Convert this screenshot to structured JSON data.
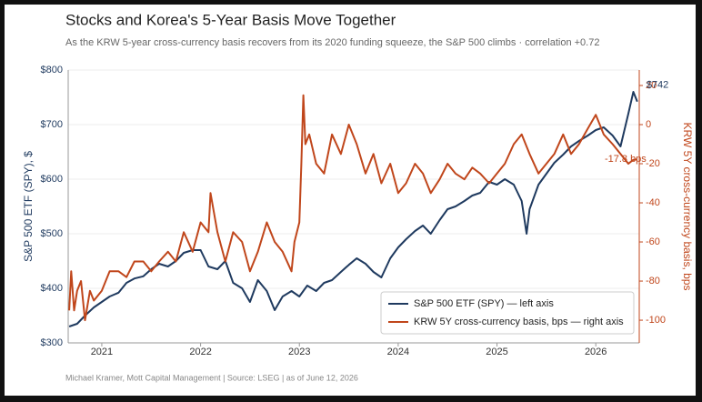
{
  "chart_data": {
    "type": "line",
    "title": "Stocks and Korea's 5-Year Basis Move Together",
    "subtitle": "As the KRW 5-year cross-currency basis recovers from its 2020 funding squeeze, the S&P 500 climbs  ·  correlation +0.72",
    "footer": "Michael Kramer, Mott Capital Management   |   Source: LSEG   |   as of June 12, 2026",
    "ylabel": "S&P 500 ETF (SPY), $",
    "y2label": "KRW 5Y cross-currency basis, bps",
    "xlim": [
      2020.66,
      2026.44
    ],
    "xticks": [
      2021,
      2022,
      2023,
      2024,
      2025,
      2026
    ],
    "ylim": [
      300,
      800
    ],
    "yticks": [
      {
        "value": 300,
        "label": "$300"
      },
      {
        "value": 400,
        "label": "$400"
      },
      {
        "value": 500,
        "label": "$500"
      },
      {
        "value": 600,
        "label": "$600"
      },
      {
        "value": 700,
        "label": "$700"
      },
      {
        "value": 800,
        "label": "$800"
      }
    ],
    "y2lim": [
      -111.6,
      27.9
    ],
    "y2ticks": [
      -100,
      -80,
      -60,
      -40,
      -20,
      0,
      20
    ],
    "legend": "lower right",
    "series": [
      {
        "name": "S&P 500 ETF (SPY)  —  left axis",
        "color": "#1f3a5f",
        "axis": "y",
        "end_label": "$742",
        "x": [
          2020.67,
          2020.75,
          2020.83,
          2020.92,
          2021.0,
          2021.08,
          2021.17,
          2021.25,
          2021.33,
          2021.42,
          2021.5,
          2021.58,
          2021.67,
          2021.75,
          2021.83,
          2021.92,
          2022.0,
          2022.08,
          2022.17,
          2022.25,
          2022.33,
          2022.42,
          2022.5,
          2022.58,
          2022.67,
          2022.75,
          2022.83,
          2022.92,
          2023.0,
          2023.08,
          2023.17,
          2023.25,
          2023.33,
          2023.42,
          2023.5,
          2023.58,
          2023.67,
          2023.75,
          2023.83,
          2023.92,
          2024.0,
          2024.08,
          2024.17,
          2024.25,
          2024.33,
          2024.42,
          2024.5,
          2024.58,
          2024.67,
          2024.75,
          2024.83,
          2024.92,
          2025.0,
          2025.08,
          2025.17,
          2025.25,
          2025.3,
          2025.33,
          2025.42,
          2025.5,
          2025.58,
          2025.67,
          2025.75,
          2025.83,
          2025.92,
          2026.0,
          2026.08,
          2026.17,
          2026.25,
          2026.33,
          2026.38,
          2026.42
        ],
        "values": [
          330,
          335,
          350,
          365,
          375,
          385,
          392,
          410,
          418,
          422,
          435,
          445,
          440,
          450,
          465,
          470,
          470,
          440,
          435,
          450,
          410,
          400,
          375,
          415,
          395,
          360,
          385,
          395,
          385,
          405,
          395,
          410,
          415,
          430,
          443,
          455,
          445,
          430,
          420,
          455,
          475,
          490,
          505,
          515,
          500,
          525,
          545,
          550,
          560,
          570,
          575,
          595,
          590,
          600,
          590,
          560,
          500,
          545,
          590,
          610,
          630,
          645,
          660,
          670,
          680,
          690,
          695,
          680,
          660,
          720,
          760,
          742
        ]
      },
      {
        "name": "KRW 5Y cross-currency basis, bps  —  right axis",
        "color": "#c0461b",
        "axis": "y2",
        "end_label": "-17.8 bps",
        "x": [
          2020.67,
          2020.69,
          2020.72,
          2020.75,
          2020.79,
          2020.83,
          2020.88,
          2020.92,
          2021.0,
          2021.08,
          2021.17,
          2021.25,
          2021.33,
          2021.42,
          2021.5,
          2021.58,
          2021.67,
          2021.75,
          2021.83,
          2021.92,
          2022.0,
          2022.08,
          2022.1,
          2022.17,
          2022.25,
          2022.33,
          2022.42,
          2022.5,
          2022.58,
          2022.67,
          2022.75,
          2022.83,
          2022.92,
          2022.95,
          2023.0,
          2023.02,
          2023.04,
          2023.06,
          2023.1,
          2023.17,
          2023.25,
          2023.33,
          2023.42,
          2023.5,
          2023.58,
          2023.67,
          2023.75,
          2023.83,
          2023.92,
          2024.0,
          2024.08,
          2024.17,
          2024.25,
          2024.33,
          2024.42,
          2024.5,
          2024.58,
          2024.67,
          2024.75,
          2024.83,
          2024.92,
          2025.0,
          2025.08,
          2025.17,
          2025.25,
          2025.33,
          2025.42,
          2025.5,
          2025.58,
          2025.67,
          2025.75,
          2025.83,
          2025.92,
          2026.0,
          2026.08,
          2026.17,
          2026.25,
          2026.33,
          2026.38,
          2026.42
        ],
        "values": [
          -95,
          -75,
          -95,
          -85,
          -80,
          -100,
          -85,
          -90,
          -85,
          -75,
          -75,
          -78,
          -70,
          -70,
          -75,
          -70,
          -65,
          -70,
          -55,
          -65,
          -50,
          -55,
          -35,
          -55,
          -70,
          -55,
          -60,
          -75,
          -65,
          -50,
          -60,
          -65,
          -75,
          -60,
          -50,
          -20,
          15,
          -10,
          -5,
          -20,
          -25,
          -5,
          -15,
          0,
          -10,
          -25,
          -15,
          -30,
          -20,
          -35,
          -30,
          -20,
          -25,
          -35,
          -28,
          -20,
          -25,
          -28,
          -22,
          -25,
          -30,
          -25,
          -20,
          -10,
          -5,
          -15,
          -25,
          -20,
          -15,
          -5,
          -15,
          -10,
          -2,
          5,
          -5,
          -10,
          -15,
          -20,
          -18,
          -17.8
        ]
      }
    ]
  }
}
